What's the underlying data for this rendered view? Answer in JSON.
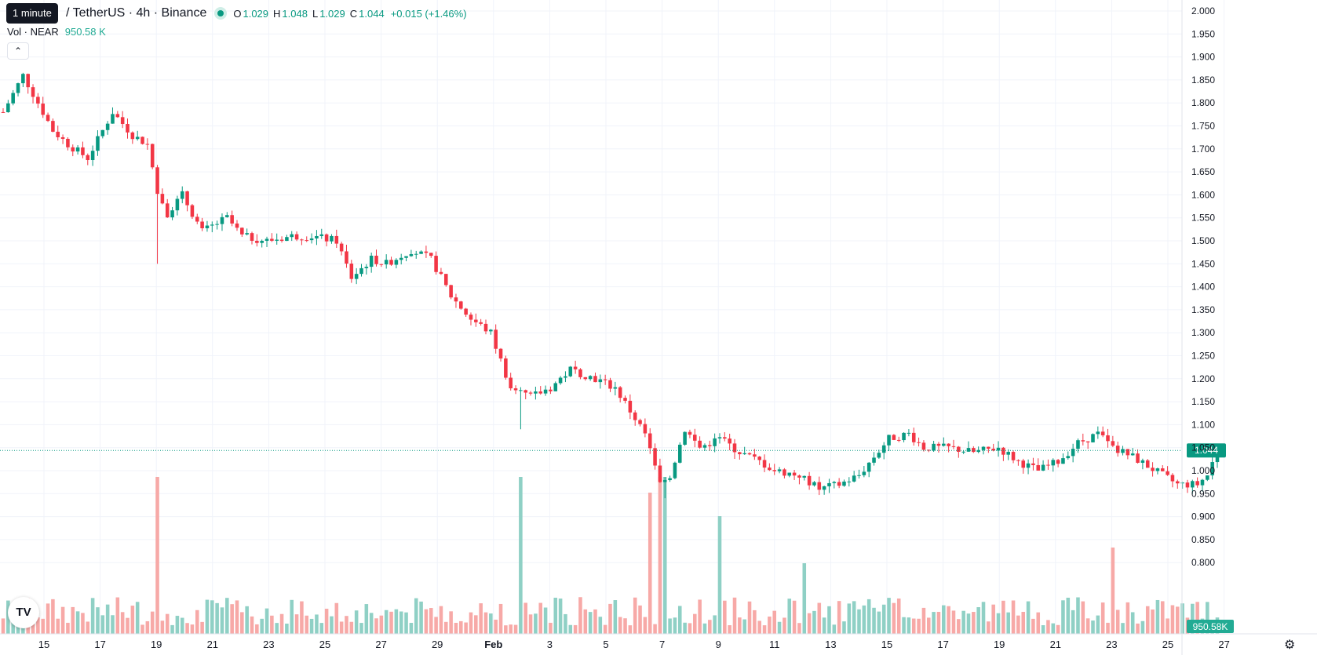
{
  "header": {
    "tooltip": "1 minute",
    "title": "/ TetherUS · 4h · Binance",
    "ohlc": [
      {
        "label": "O",
        "value": "1.029"
      },
      {
        "label": "H",
        "value": "1.048"
      },
      {
        "label": "L",
        "value": "1.029"
      },
      {
        "label": "C",
        "value": "1.044"
      }
    ],
    "change": "+0.015 (+1.46%)",
    "volume_label": "Vol · NEAR",
    "volume_value": "950.58 K",
    "collapse_icon": "chevron-up-icon"
  },
  "footer": {
    "logo_text": "TV",
    "settings_icon": "gear-icon"
  },
  "colors": {
    "up": "#089981",
    "down": "#f23645",
    "vol_up": "#8fd0c5",
    "vol_down": "#f7a9a7",
    "grid": "#f0f3fa"
  },
  "chart_data": {
    "type": "candlestick",
    "interval": "4h",
    "y_axis": {
      "min": 0.75,
      "max": 2.0,
      "ticks": [
        "2.000",
        "1.950",
        "1.900",
        "1.850",
        "1.800",
        "1.750",
        "1.700",
        "1.650",
        "1.600",
        "1.550",
        "1.500",
        "1.450",
        "1.400",
        "1.350",
        "1.300",
        "1.250",
        "1.200",
        "1.150",
        "1.100",
        "1.050",
        "1.000",
        "0.950",
        "0.900",
        "0.850",
        "0.800"
      ],
      "last_price_label": "1.044",
      "last_price": 1.044,
      "last_volume_label": "950.58K"
    },
    "x_axis": {
      "ticks": [
        "15",
        "17",
        "19",
        "21",
        "23",
        "25",
        "27",
        "29",
        "Feb",
        "3",
        "5",
        "7",
        "9",
        "11",
        "13",
        "15",
        "17",
        "19",
        "21",
        "23",
        "25",
        "27"
      ],
      "bold_ticks": [
        "Feb"
      ]
    },
    "grid": true,
    "price_path": [
      [
        0,
        1.78
      ],
      [
        4,
        1.86
      ],
      [
        10,
        1.74
      ],
      [
        13,
        1.71
      ],
      [
        17,
        1.68
      ],
      [
        22,
        1.78
      ],
      [
        26,
        1.73
      ],
      [
        29,
        1.71
      ],
      [
        31,
        1.61
      ],
      [
        33,
        1.56
      ],
      [
        36,
        1.6
      ],
      [
        40,
        1.52
      ],
      [
        45,
        1.55
      ],
      [
        48,
        1.51
      ],
      [
        53,
        1.5
      ],
      [
        58,
        1.51
      ],
      [
        62,
        1.51
      ],
      [
        67,
        1.5
      ],
      [
        70,
        1.42
      ],
      [
        74,
        1.46
      ],
      [
        77,
        1.45
      ],
      [
        82,
        1.48
      ],
      [
        86,
        1.46
      ],
      [
        90,
        1.38
      ],
      [
        94,
        1.33
      ],
      [
        98,
        1.3
      ],
      [
        102,
        1.18
      ],
      [
        106,
        1.16
      ],
      [
        110,
        1.18
      ],
      [
        114,
        1.22
      ],
      [
        119,
        1.2
      ],
      [
        123,
        1.18
      ],
      [
        126,
        1.13
      ],
      [
        129,
        1.08
      ],
      [
        132,
        0.97
      ],
      [
        134,
        0.99
      ],
      [
        137,
        1.09
      ],
      [
        140,
        1.05
      ],
      [
        144,
        1.07
      ],
      [
        148,
        1.04
      ],
      [
        152,
        1.02
      ],
      [
        155,
        1.0
      ],
      [
        160,
        0.99
      ],
      [
        164,
        0.96
      ],
      [
        168,
        0.97
      ],
      [
        172,
        0.99
      ],
      [
        175,
        1.03
      ],
      [
        178,
        1.07
      ],
      [
        182,
        1.08
      ],
      [
        185,
        1.05
      ],
      [
        190,
        1.05
      ],
      [
        195,
        1.04
      ],
      [
        200,
        1.05
      ],
      [
        204,
        1.02
      ],
      [
        208,
        1.0
      ],
      [
        212,
        1.02
      ],
      [
        216,
        1.06
      ],
      [
        220,
        1.08
      ],
      [
        223,
        1.05
      ],
      [
        227,
        1.03
      ],
      [
        230,
        1.01
      ],
      [
        233,
        0.99
      ],
      [
        236,
        0.97
      ],
      [
        240,
        0.97
      ],
      [
        242,
        0.99
      ],
      [
        244,
        1.044
      ]
    ],
    "events": [
      {
        "index": 31,
        "wick_to": 1.45
      },
      {
        "index": 104,
        "wick_to": 1.09
      },
      {
        "index": 133,
        "wick_to": 0.94
      }
    ],
    "volume_spikes": [
      {
        "index": 31,
        "value": 1.0
      },
      {
        "index": 104,
        "value": 1.0
      },
      {
        "index": 130,
        "value": 0.9
      },
      {
        "index": 132,
        "value": 1.0
      },
      {
        "index": 133,
        "value": 1.0
      },
      {
        "index": 144,
        "value": 0.75
      },
      {
        "index": 161,
        "value": 0.45
      },
      {
        "index": 223,
        "value": 0.55
      }
    ]
  }
}
